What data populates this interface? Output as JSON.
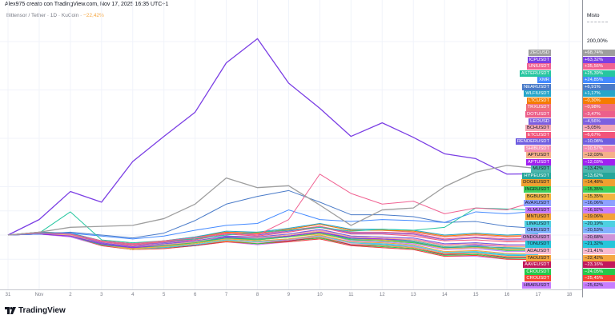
{
  "header": {
    "attribution": "Alex975 creato con TradingView.com, Nov 17, 2025 16:35 UTC+1",
    "symbol": "Bittensor / Tether · 1D · KuCoin ·",
    "symbol_change": "−22,42%"
  },
  "scale": {
    "mode": "Misto",
    "top_label": "200,00%"
  },
  "footer": {
    "logo_text": "TradingView",
    "logo_icon": "tradingview-logo-icon"
  },
  "chart_data": {
    "type": "line",
    "title": "",
    "xlabel": "",
    "ylabel": "",
    "x_tick_labels": [
      "31",
      "Nov",
      "2",
      "3",
      "4",
      "5",
      "6",
      "7",
      "8",
      "9",
      "10",
      "11",
      "12",
      "13",
      "14",
      "15",
      "16",
      "17",
      "18"
    ],
    "x": [
      "Oct 31",
      "Nov 1",
      "Nov 2",
      "Nov 3",
      "Nov 4",
      "Nov 5",
      "Nov 6",
      "Nov 7",
      "Nov 8",
      "Nov 9",
      "Nov 10",
      "Nov 11",
      "Nov 12",
      "Nov 13",
      "Nov 14",
      "Nov 15",
      "Nov 16",
      "Nov 17"
    ],
    "y_unit": "%",
    "ylim": [
      -30,
      220
    ],
    "grid": true,
    "legend": "right-axis labels",
    "series": [
      {
        "name": "ZECUSD",
        "label": "+68,74%",
        "color": "#9e9e9e",
        "values": [
          0,
          3,
          8,
          9,
          10,
          17,
          32,
          59,
          49,
          51,
          31,
          10,
          26,
          28,
          50,
          65,
          72,
          68.74
        ]
      },
      {
        "name": "ICPUSDT",
        "label": "+63,32%",
        "color": "#7b3fe4",
        "values": [
          0,
          16,
          45,
          34,
          76,
          102,
          127,
          178,
          203,
          157,
          131,
          102,
          116,
          101,
          84,
          79,
          63,
          63.32
        ]
      },
      {
        "name": "UNIUSDT",
        "label": "+35,56%",
        "color": "#f06292",
        "values": [
          0,
          2,
          1,
          -6,
          -9,
          -6,
          -3,
          2,
          0,
          16,
          63,
          43,
          32,
          35,
          22,
          28,
          26,
          35.56
        ]
      },
      {
        "name": "ASTERUSDT",
        "label": "+25,39%",
        "color": "#26c6a0",
        "values": [
          0,
          2,
          24,
          -5,
          -8,
          -6,
          -4,
          0,
          3,
          5,
          8,
          4,
          6,
          5,
          8,
          28,
          27,
          25.39
        ]
      },
      {
        "name": "XMR",
        "label": "+24,85%",
        "color": "#448aff",
        "values": [
          0,
          1,
          2,
          -1,
          -4,
          -1,
          5,
          10,
          12,
          26,
          16,
          14,
          16,
          15,
          13,
          24,
          22,
          24.85
        ]
      },
      {
        "name": "NEARUSDT",
        "label": "+6,91%",
        "color": "#4a7bc8",
        "values": [
          0,
          1,
          3,
          0,
          -3,
          2,
          15,
          32,
          40,
          46,
          34,
          21,
          21,
          19,
          13,
          14,
          9,
          6.91
        ]
      },
      {
        "name": "WLFIUSDT",
        "label": "+1,17%",
        "color": "#26a6c9",
        "values": [
          0,
          3,
          2,
          -6,
          -9,
          -6,
          -2,
          4,
          3,
          7,
          12,
          6,
          6,
          5,
          0,
          2,
          0,
          1.17
        ]
      },
      {
        "name": "LTCUSDT",
        "label": "−0,30%",
        "color": "#f57c00",
        "values": [
          0,
          3,
          2,
          -6,
          -9,
          -6,
          -2,
          3,
          2,
          6,
          11,
          5,
          5,
          4,
          -1,
          1,
          -1,
          -0.3
        ]
      },
      {
        "name": "TRXUSDT",
        "label": "−0,98%",
        "color": "#ef6f7f",
        "values": [
          0,
          3,
          2,
          -6,
          -9,
          -7,
          -3,
          3,
          2,
          6,
          11,
          5,
          5,
          3,
          -2,
          0,
          -2,
          -0.98
        ]
      },
      {
        "name": "DOTUSDT",
        "label": "−3,47%",
        "color": "#ec5f8a",
        "values": [
          0,
          3,
          1,
          -7,
          -10,
          -7,
          -4,
          2,
          1,
          5,
          9,
          3,
          3,
          2,
          -4,
          -2,
          -4,
          -3.47
        ]
      },
      {
        "name": "LEOUSD",
        "label": "−4,56%",
        "color": "#7c5fe0",
        "values": [
          0,
          3,
          1,
          -7,
          -10,
          -8,
          -4,
          2,
          0,
          4,
          9,
          2,
          2,
          1,
          -5,
          -3,
          -5,
          -4.56
        ]
      },
      {
        "name": "BCHUSDT",
        "label": "−5,05%",
        "color": "#f3a6b5",
        "textColor": "#131722",
        "values": [
          0,
          3,
          1,
          -7,
          -10,
          -8,
          -4,
          2,
          0,
          4,
          9,
          2,
          2,
          0,
          -5,
          -3,
          -6,
          -5.05
        ]
      },
      {
        "name": "ETCUSDT",
        "label": "−6,67%",
        "color": "#f2547a",
        "values": [
          0,
          3,
          1,
          -7,
          -11,
          -8,
          -5,
          1,
          -1,
          3,
          8,
          1,
          1,
          -1,
          -6,
          -5,
          -7,
          -6.67
        ]
      },
      {
        "name": "RENDERUSDT",
        "label": "−10,08%",
        "color": "#6f5ee0",
        "values": [
          0,
          2,
          1,
          -8,
          -12,
          -9,
          -6,
          -1,
          -2,
          1,
          6,
          -1,
          -2,
          -3,
          -9,
          -8,
          -10,
          -10.08
        ]
      },
      {
        "name": "SHIBUSDT",
        "label": "−10,57%",
        "color": "#f48fb1",
        "values": [
          0,
          2,
          1,
          -8,
          -12,
          -9,
          -6,
          -1,
          -2,
          1,
          5,
          -1,
          -2,
          -4,
          -10,
          -8,
          -11,
          -10.57
        ]
      },
      {
        "name": "APTUSDT",
        "label": "−12,03%",
        "color": "#f5b08a",
        "textColor": "#131722",
        "values": [
          0,
          2,
          0,
          -8,
          -12,
          -10,
          -7,
          -1,
          -3,
          0,
          4,
          -2,
          -3,
          -5,
          -11,
          -9,
          -12,
          -12.03
        ]
      },
      {
        "name": "APTUSDT",
        "label": "−12,03%",
        "color": "#a020f0",
        "values": [
          0,
          1,
          -1,
          -9,
          -13,
          -10,
          -6,
          -2,
          -3,
          -1,
          3,
          -3,
          -4,
          -5,
          -10,
          -10,
          -12,
          -12.03
        ]
      },
      {
        "name": "MUSDT",
        "label": "−13,42%",
        "color": "#4db6ac",
        "textColor": "#131722",
        "values": [
          0,
          2,
          0,
          -9,
          -12,
          -10,
          -7,
          -2,
          -4,
          -1,
          4,
          -3,
          -4,
          -6,
          -12,
          -11,
          -14,
          -13.42
        ]
      },
      {
        "name": "HYPEUSDT",
        "label": "−13,62%",
        "color": "#26a69a",
        "values": [
          0,
          1,
          -1,
          -10,
          -13,
          -11,
          -7,
          -3,
          -4,
          -1,
          3,
          -4,
          -4,
          -7,
          -13,
          -12,
          -13,
          -13.62
        ]
      },
      {
        "name": "DOGEUSDT",
        "label": "−14,48%",
        "color": "#f0a030",
        "textColor": "#131722",
        "values": [
          0,
          2,
          0,
          -9,
          -13,
          -11,
          -7,
          -2,
          -4,
          -1,
          3,
          -4,
          -5,
          -7,
          -13,
          -12,
          -15,
          -14.48
        ]
      },
      {
        "name": "INGRUSDT",
        "label": "−15,35%",
        "color": "#3ecf5a",
        "textColor": "#131722",
        "values": [
          0,
          2,
          0,
          -9,
          -13,
          -11,
          -8,
          -3,
          -5,
          -2,
          2,
          -5,
          -6,
          -8,
          -13,
          -12,
          -16,
          -15.35
        ]
      },
      {
        "name": "BGBUSDT",
        "label": "−15,35%",
        "color": "#f2b440",
        "textColor": "#131722",
        "values": [
          0,
          1,
          -1,
          -10,
          -13,
          -12,
          -8,
          -4,
          -5,
          -2,
          1,
          -5,
          -6,
          -8,
          -14,
          -13,
          -15,
          -15.35
        ]
      },
      {
        "name": "AVAXUSDT",
        "label": "−16,06%",
        "color": "#8ea0ff",
        "textColor": "#131722",
        "values": [
          0,
          2,
          0,
          -9,
          -13,
          -11,
          -8,
          -3,
          -5,
          -2,
          2,
          -5,
          -6,
          -8,
          -14,
          -13,
          -16,
          -16.06
        ]
      },
      {
        "name": "XLMUSDT",
        "label": "−16,92%",
        "color": "#c77dff",
        "textColor": "#131722",
        "values": [
          0,
          2,
          0,
          -9,
          -13,
          -11,
          -8,
          -3,
          -5,
          -2,
          2,
          -6,
          -7,
          -9,
          -15,
          -14,
          -17,
          -16.92
        ]
      },
      {
        "name": "MNTUSDT",
        "label": "−19,06%",
        "color": "#f4a23a",
        "textColor": "#131722",
        "values": [
          0,
          2,
          0,
          -10,
          -14,
          -12,
          -9,
          -4,
          -6,
          -4,
          0,
          -7,
          -8,
          -10,
          -17,
          -16,
          -19,
          -19.06
        ]
      },
      {
        "name": "LINKUSDT",
        "label": "−20,19%",
        "color": "#4dd0e1",
        "textColor": "#131722",
        "values": [
          0,
          2,
          -1,
          -10,
          -14,
          -12,
          -10,
          -5,
          -7,
          -4,
          0,
          -8,
          -9,
          -11,
          -18,
          -17,
          -20,
          -20.19
        ]
      },
      {
        "name": "OKBUSDT",
        "label": "−20,53%",
        "color": "#82b1ff",
        "textColor": "#131722",
        "values": [
          0,
          2,
          -1,
          -10,
          -14,
          -12,
          -10,
          -5,
          -7,
          -4,
          -1,
          -8,
          -9,
          -11,
          -18,
          -17,
          -20,
          -20.53
        ]
      },
      {
        "name": "ONDOUSDT",
        "label": "−20,68%",
        "color": "#ce93d8",
        "textColor": "#131722",
        "values": [
          0,
          2,
          -1,
          -10,
          -14,
          -12,
          -10,
          -5,
          -7,
          -5,
          -1,
          -8,
          -9,
          -12,
          -18,
          -17,
          -20,
          -20.68
        ]
      },
      {
        "name": "TONUSDT",
        "label": "−21,32%",
        "color": "#26c6da",
        "textColor": "#131722",
        "values": [
          0,
          2,
          -1,
          -10,
          -14,
          -13,
          -10,
          -5,
          -7,
          -5,
          -1,
          -8,
          -10,
          -12,
          -18,
          -18,
          -21,
          -21.32
        ]
      },
      {
        "name": "ADAUSDT",
        "label": "−21,41%",
        "color": "#f8bbd0",
        "textColor": "#131722",
        "values": [
          0,
          2,
          -1,
          -10,
          -14,
          -13,
          -10,
          -5,
          -8,
          -5,
          -1,
          -9,
          -10,
          -12,
          -18,
          -18,
          -21,
          -21.41
        ]
      },
      {
        "name": "TAOUSDT",
        "label": "−22,42%",
        "color": "#f5a742",
        "textColor": "#131722",
        "values": [
          0,
          2,
          -1,
          -10,
          -15,
          -13,
          -10,
          -6,
          -8,
          -5,
          -2,
          -9,
          -11,
          -13,
          -19,
          -19,
          -22,
          -22.42
        ]
      },
      {
        "name": "AAVEUSDT",
        "label": "−23,16%",
        "color": "#c2185b",
        "values": [
          0,
          2,
          -1,
          -10,
          -15,
          -13,
          -11,
          -6,
          -8,
          -6,
          -2,
          -10,
          -11,
          -13,
          -20,
          -19,
          -23,
          -23.16
        ]
      },
      {
        "name": "CROUSDT",
        "label": "−24,05%",
        "color": "#26c84a",
        "values": [
          0,
          2,
          -1,
          -10,
          -15,
          -13,
          -11,
          -6,
          -9,
          -6,
          -3,
          -10,
          -12,
          -14,
          -21,
          -20,
          -24,
          -24.05
        ]
      },
      {
        "name": "CROUSDT",
        "label": "−25,45%",
        "color": "#f44336",
        "values": [
          0,
          1,
          -1,
          -11,
          -15,
          -14,
          -11,
          -7,
          -9,
          -7,
          -4,
          -11,
          -13,
          -15,
          -22,
          -21,
          -25,
          -25.45
        ]
      },
      {
        "name": "HBARUSDT",
        "label": "−25,62%",
        "color": "#c77dff",
        "textColor": "#131722",
        "values": [
          0,
          1,
          -2,
          -11,
          -15,
          -14,
          -11,
          -7,
          -10,
          -7,
          -4,
          -11,
          -13,
          -15,
          -22,
          -22,
          -25,
          -25.62
        ]
      }
    ]
  }
}
